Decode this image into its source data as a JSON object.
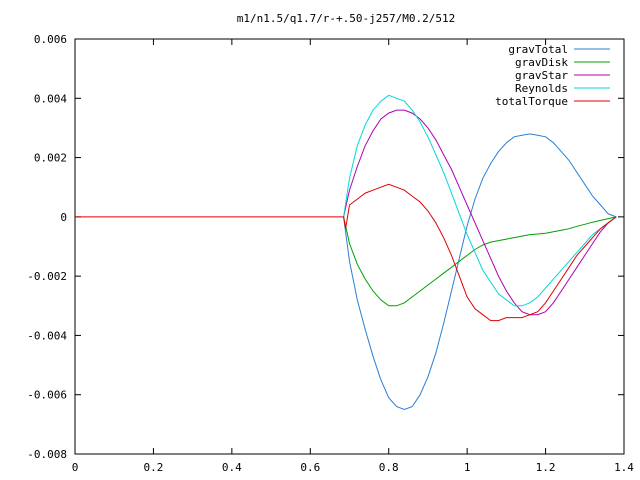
{
  "chart_data": {
    "type": "line",
    "title": "m1/n1.5/q1.7/r-+.50-j257/M0.2/512",
    "xlabel": "",
    "ylabel": "",
    "xlim": [
      0,
      1.4
    ],
    "ylim": [
      -0.008,
      0.006
    ],
    "x_ticks": [
      0,
      0.2,
      0.4,
      0.6,
      0.8,
      1,
      1.2,
      1.4
    ],
    "x_tick_labels": [
      "0",
      "0.2",
      "0.4",
      "0.6",
      "0.8",
      "1",
      "1.2",
      "1.4"
    ],
    "y_ticks": [
      -0.008,
      -0.006,
      -0.004,
      -0.002,
      0,
      0.002,
      0.004,
      0.006
    ],
    "y_tick_labels": [
      "-0.008",
      "-0.006",
      "-0.004",
      "-0.002",
      "0",
      "0.002",
      "0.004",
      "0.006"
    ],
    "grid": false,
    "legend_position": "top-right",
    "series": [
      {
        "name": "gravTotal",
        "color": "#2a7fd4",
        "x": [
          0.685,
          0.7,
          0.72,
          0.74,
          0.76,
          0.78,
          0.8,
          0.82,
          0.84,
          0.86,
          0.88,
          0.9,
          0.92,
          0.94,
          0.96,
          0.98,
          1.0,
          1.02,
          1.04,
          1.06,
          1.08,
          1.1,
          1.12,
          1.14,
          1.16,
          1.18,
          1.2,
          1.22,
          1.24,
          1.26,
          1.28,
          1.3,
          1.32,
          1.34,
          1.36,
          1.38
        ],
        "y": [
          0.0,
          -0.0015,
          -0.0028,
          -0.0038,
          -0.0047,
          -0.0055,
          -0.0061,
          -0.0064,
          -0.0065,
          -0.0064,
          -0.006,
          -0.0054,
          -0.0046,
          -0.0036,
          -0.0025,
          -0.0014,
          -0.0003,
          0.0006,
          0.0013,
          0.0018,
          0.0022,
          0.0025,
          0.0027,
          0.00275,
          0.0028,
          0.00275,
          0.0027,
          0.0025,
          0.0022,
          0.0019,
          0.0015,
          0.0011,
          0.0007,
          0.0004,
          0.0001,
          0.0
        ]
      },
      {
        "name": "gravDisk",
        "color": "#00a000",
        "x": [
          0.685,
          0.7,
          0.72,
          0.74,
          0.76,
          0.78,
          0.8,
          0.82,
          0.84,
          0.86,
          0.88,
          0.9,
          0.92,
          0.94,
          0.96,
          0.98,
          1.0,
          1.02,
          1.04,
          1.06,
          1.08,
          1.1,
          1.12,
          1.14,
          1.16,
          1.18,
          1.2,
          1.22,
          1.24,
          1.26,
          1.28,
          1.3,
          1.32,
          1.34,
          1.36,
          1.38
        ],
        "y": [
          0.0,
          -0.0009,
          -0.0016,
          -0.0021,
          -0.0025,
          -0.0028,
          -0.003,
          -0.003,
          -0.0029,
          -0.0027,
          -0.0025,
          -0.0023,
          -0.0021,
          -0.0019,
          -0.0017,
          -0.0015,
          -0.0013,
          -0.0011,
          -0.00095,
          -0.00085,
          -0.0008,
          -0.00075,
          -0.0007,
          -0.00065,
          -0.0006,
          -0.00058,
          -0.00055,
          -0.0005,
          -0.00045,
          -0.0004,
          -0.00032,
          -0.00025,
          -0.00018,
          -0.00012,
          -6e-05,
          0.0
        ]
      },
      {
        "name": "gravStar",
        "color": "#b000b0",
        "x": [
          0.685,
          0.7,
          0.72,
          0.74,
          0.76,
          0.78,
          0.8,
          0.82,
          0.84,
          0.86,
          0.88,
          0.9,
          0.92,
          0.94,
          0.96,
          0.98,
          1.0,
          1.02,
          1.04,
          1.06,
          1.08,
          1.1,
          1.12,
          1.14,
          1.16,
          1.18,
          1.2,
          1.22,
          1.24,
          1.26,
          1.28,
          1.3,
          1.32,
          1.34,
          1.36,
          1.38
        ],
        "y": [
          0.0,
          0.0009,
          0.0017,
          0.0024,
          0.0029,
          0.0033,
          0.0035,
          0.0036,
          0.0036,
          0.0035,
          0.0033,
          0.003,
          0.0026,
          0.0021,
          0.0016,
          0.001,
          0.0004,
          -0.0002,
          -0.0008,
          -0.0014,
          -0.002,
          -0.0025,
          -0.0029,
          -0.0032,
          -0.0033,
          -0.0033,
          -0.0032,
          -0.0029,
          -0.0025,
          -0.0021,
          -0.0017,
          -0.0013,
          -0.0009,
          -0.0005,
          -0.0002,
          0.0
        ]
      },
      {
        "name": "Reynolds",
        "color": "#00d8d8",
        "x": [
          0.685,
          0.7,
          0.72,
          0.74,
          0.76,
          0.78,
          0.8,
          0.82,
          0.84,
          0.86,
          0.88,
          0.9,
          0.92,
          0.94,
          0.96,
          0.98,
          1.0,
          1.02,
          1.04,
          1.06,
          1.08,
          1.1,
          1.12,
          1.14,
          1.16,
          1.18,
          1.2,
          1.22,
          1.24,
          1.26,
          1.28,
          1.3,
          1.32,
          1.34,
          1.36,
          1.38
        ],
        "y": [
          0.0,
          0.0013,
          0.0024,
          0.0031,
          0.0036,
          0.0039,
          0.0041,
          0.004,
          0.0039,
          0.0036,
          0.0032,
          0.0027,
          0.0021,
          0.0015,
          0.0008,
          0.0001,
          -0.0006,
          -0.0012,
          -0.0018,
          -0.0022,
          -0.0026,
          -0.0028,
          -0.003,
          -0.003,
          -0.0029,
          -0.0027,
          -0.0024,
          -0.0021,
          -0.0018,
          -0.0015,
          -0.0012,
          -0.0009,
          -0.0006,
          -0.0004,
          -0.0002,
          0.0
        ]
      },
      {
        "name": "totalTorque",
        "color": "#e00000",
        "x": [
          0.0,
          0.5,
          0.685,
          0.69,
          0.7,
          0.72,
          0.74,
          0.76,
          0.78,
          0.8,
          0.82,
          0.84,
          0.86,
          0.88,
          0.9,
          0.92,
          0.94,
          0.96,
          0.98,
          1.0,
          1.02,
          1.04,
          1.06,
          1.08,
          1.1,
          1.12,
          1.14,
          1.16,
          1.18,
          1.2,
          1.22,
          1.24,
          1.26,
          1.28,
          1.3,
          1.32,
          1.34,
          1.36,
          1.38
        ],
        "y": [
          0.0,
          0.0,
          0.0,
          -0.0004,
          0.0004,
          0.0006,
          0.0008,
          0.0009,
          0.001,
          0.0011,
          0.001,
          0.0009,
          0.0007,
          0.0005,
          0.0002,
          -0.0002,
          -0.0007,
          -0.0013,
          -0.002,
          -0.0027,
          -0.0031,
          -0.0033,
          -0.0035,
          -0.0035,
          -0.0034,
          -0.0034,
          -0.0034,
          -0.0033,
          -0.0032,
          -0.0029,
          -0.0025,
          -0.0021,
          -0.0017,
          -0.0013,
          -0.001,
          -0.0007,
          -0.0004,
          -0.0002,
          0.0
        ]
      }
    ]
  }
}
